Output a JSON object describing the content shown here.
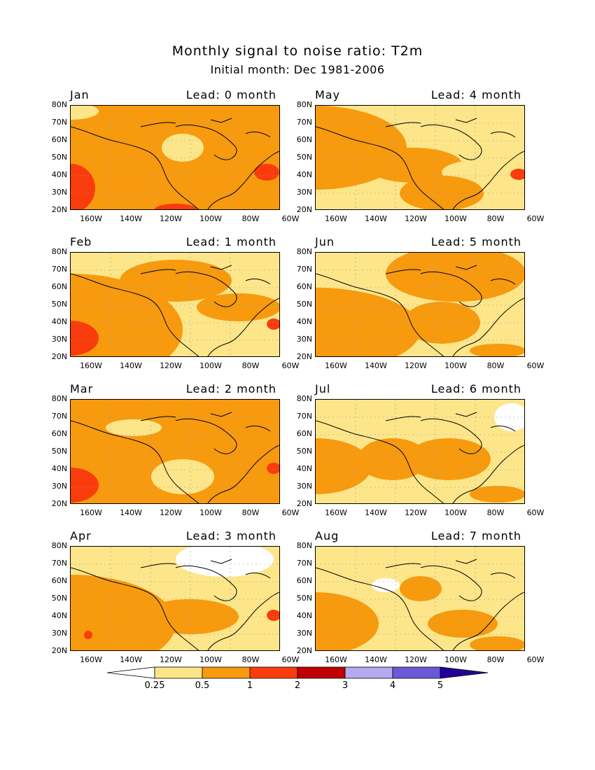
{
  "title": "Monthly signal to noise ratio: T2m",
  "subtitle": "Initial month: Dec 1981-2006",
  "panels": [
    {
      "month": "Jan",
      "lead": "Lead: 0 month"
    },
    {
      "month": "May",
      "lead": "Lead: 4 month"
    },
    {
      "month": "Feb",
      "lead": "Lead: 1 month"
    },
    {
      "month": "Jun",
      "lead": "Lead: 5 month"
    },
    {
      "month": "Mar",
      "lead": "Lead: 2 month"
    },
    {
      "month": "Jul",
      "lead": "Lead: 6 month"
    },
    {
      "month": "Apr",
      "lead": "Lead: 3 month"
    },
    {
      "month": "Aug",
      "lead": "Lead: 7 month"
    }
  ],
  "lat_ticks": [
    "80N",
    "70N",
    "60N",
    "50N",
    "40N",
    "30N",
    "20N"
  ],
  "lon_ticks": [
    "160W",
    "140W",
    "120W",
    "100W",
    "80W",
    "60W"
  ],
  "colorbar": {
    "labels": [
      "0.25",
      "0.5",
      "1",
      "2",
      "3",
      "4",
      "5"
    ],
    "colors": [
      "#ffffff",
      "#fde68a",
      "#f79a0e",
      "#fa3c0c",
      "#c00000",
      "#b7a8f0",
      "#6a5ad8",
      "#24009a"
    ]
  }
}
